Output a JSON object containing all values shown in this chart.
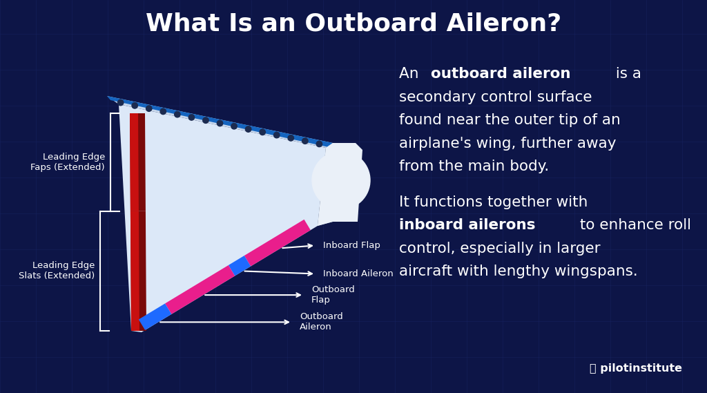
{
  "title": "What Is an Outboard Aileron?",
  "title_fontsize": 26,
  "bg_color": "#0d1547",
  "grid_color": "#1a2565",
  "text_color": "#ffffff",
  "label_leading_edge_flaps": "Leading Edge\nFaps (Extended)",
  "label_leading_edge_slats": "Leading Edge\nSlats (Extended)",
  "label_inboard_flap": "Inboard Flap",
  "label_inboard_aileron": "Inboard Aileron",
  "label_outboard_flap": "Outboard\nFlap",
  "label_outboard_aileron": "Outboard\nAileron",
  "color_wing_main": "#dce8f8",
  "color_wing_top": "#c8d8ed",
  "color_wing_blue_edge": "#1565c0",
  "color_le_dark": "#7a0a0a",
  "color_le_red": "#c81010",
  "color_flap_pink": "#e91e8c",
  "color_aileron_blue": "#1e6aff",
  "color_fuselage": "#eaf0f8",
  "font_size_body": 15.5,
  "font_size_label": 9.5,
  "pilotinstitute_text": "pilotinstitute"
}
